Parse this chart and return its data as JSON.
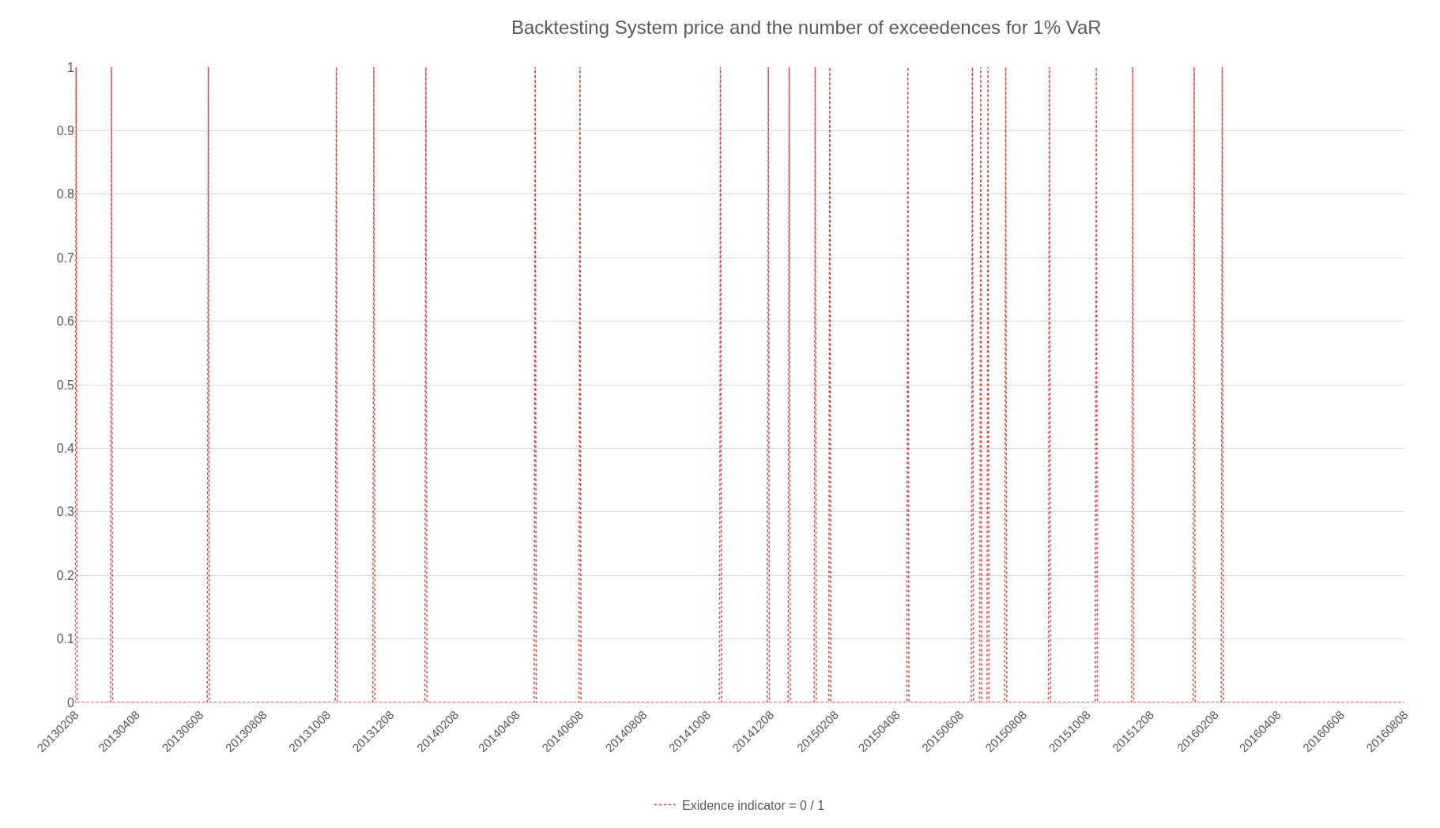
{
  "chart_data": {
    "type": "line",
    "title": "Backtesting System price and the number of exceedences for 1% VaR",
    "series": [
      {
        "name": "Exidence indicator = 0 / 1",
        "color": "#e0403c",
        "line_style": "dotted",
        "marker": "none",
        "x": [
          "2013-02-08",
          "2013-02-09",
          "2013-02-10",
          "2013-03-14",
          "2013-03-15",
          "2013-03-16",
          "2013-06-15",
          "2013-06-16",
          "2013-06-17",
          "2013-10-16",
          "2013-10-17",
          "2013-10-18",
          "2013-11-21",
          "2013-11-22",
          "2013-11-23",
          "2014-01-10",
          "2014-01-11",
          "2014-01-12",
          "2014-04-25",
          "2014-04-26",
          "2014-04-27",
          "2014-06-07",
          "2014-06-08",
          "2014-06-09",
          "2014-10-20",
          "2014-10-21",
          "2014-10-22",
          "2014-12-05",
          "2014-12-06",
          "2014-12-07",
          "2014-12-25",
          "2014-12-26",
          "2014-12-27",
          "2015-01-19",
          "2015-01-20",
          "2015-01-21",
          "2015-02-02",
          "2015-02-03",
          "2015-02-04",
          "2015-04-18",
          "2015-04-19",
          "2015-04-20",
          "2015-06-19",
          "2015-06-20",
          "2015-06-21",
          "2015-06-27",
          "2015-06-28",
          "2015-06-29",
          "2015-07-04",
          "2015-07-05",
          "2015-07-06",
          "2015-07-21",
          "2015-07-22",
          "2015-07-23",
          "2015-09-01",
          "2015-09-02",
          "2015-09-03",
          "2015-10-16",
          "2015-10-17",
          "2015-10-18",
          "2015-11-20",
          "2015-11-21",
          "2015-11-22",
          "2016-01-18",
          "2016-01-19",
          "2016-01-20",
          "2016-02-14",
          "2016-02-15",
          "2016-02-16",
          "2016-08-08"
        ],
        "values": [
          0,
          1,
          0,
          0,
          1,
          0,
          0,
          1,
          0,
          0,
          1,
          0,
          0,
          1,
          0,
          0,
          1,
          0,
          0,
          1,
          0,
          0,
          1,
          0,
          0,
          1,
          0,
          0,
          1,
          0,
          0,
          1,
          0,
          0,
          1,
          0,
          0,
          1,
          0,
          0,
          1,
          0,
          0,
          1,
          0,
          0,
          1,
          0,
          0,
          1,
          0,
          0,
          1,
          0,
          0,
          1,
          0,
          0,
          1,
          0,
          0,
          1,
          0,
          0,
          1,
          0,
          0,
          1,
          0,
          0
        ]
      }
    ],
    "xlim": [
      "2013-02-08",
      "2016-08-08"
    ],
    "xticks": [
      {
        "value": "2013-02-08",
        "label": "20130208"
      },
      {
        "value": "2013-04-08",
        "label": "20130408"
      },
      {
        "value": "2013-06-08",
        "label": "20130608"
      },
      {
        "value": "2013-08-08",
        "label": "20130808"
      },
      {
        "value": "2013-10-08",
        "label": "20131008"
      },
      {
        "value": "2013-12-08",
        "label": "20131208"
      },
      {
        "value": "2014-02-08",
        "label": "20140208"
      },
      {
        "value": "2014-04-08",
        "label": "20140408"
      },
      {
        "value": "2014-06-08",
        "label": "20140608"
      },
      {
        "value": "2014-08-08",
        "label": "20140808"
      },
      {
        "value": "2014-10-08",
        "label": "20141008"
      },
      {
        "value": "2014-12-08",
        "label": "20141208"
      },
      {
        "value": "2015-02-08",
        "label": "20150208"
      },
      {
        "value": "2015-04-08",
        "label": "20150408"
      },
      {
        "value": "2015-06-08",
        "label": "20150608"
      },
      {
        "value": "2015-08-08",
        "label": "20150808"
      },
      {
        "value": "2015-10-08",
        "label": "20151008"
      },
      {
        "value": "2015-12-08",
        "label": "20151208"
      },
      {
        "value": "2016-02-08",
        "label": "20160208"
      },
      {
        "value": "2016-04-08",
        "label": "20160408"
      },
      {
        "value": "2016-06-08",
        "label": "20160608"
      },
      {
        "value": "2016-08-08",
        "label": "20160808"
      }
    ],
    "ylim": [
      0,
      1
    ],
    "yticks": [
      0,
      0.1,
      0.2,
      0.3,
      0.4,
      0.5,
      0.6,
      0.7,
      0.8,
      0.9,
      1
    ],
    "grid": "y",
    "legend": "bottom"
  }
}
